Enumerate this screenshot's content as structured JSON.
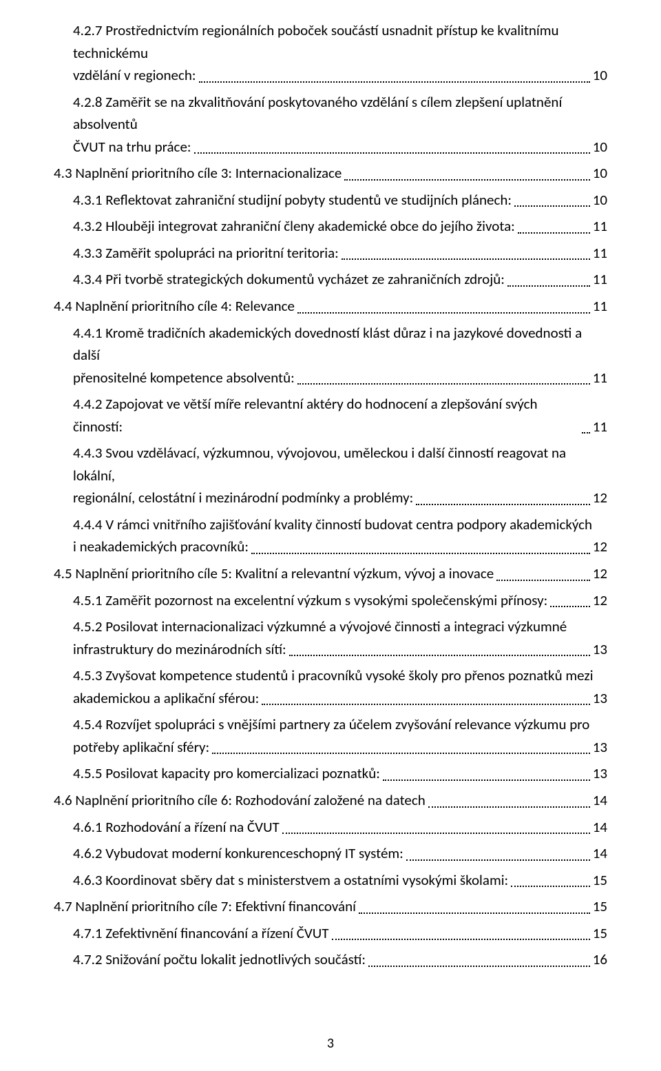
{
  "page_number": "3",
  "toc": [
    {
      "level": 2,
      "multiline": true,
      "pre": "4.2.7 Prostřednictvím regionálních poboček součástí usnadnit přístup ke kvalitnímu technickému",
      "last": "vzdělání v regionech:",
      "page": "10"
    },
    {
      "level": 2,
      "multiline": true,
      "pre": "4.2.8 Zaměřit se na zkvalitňování poskytovaného vzdělání  s cílem zlepšení uplatnění absolventů",
      "last": "ČVUT na trhu práce:",
      "page": "10"
    },
    {
      "level": 1,
      "multiline": false,
      "text": "4.3 Naplnění prioritního cíle 3: Internacionalizace",
      "page": "10"
    },
    {
      "level": 2,
      "multiline": false,
      "text": "4.3.1 Reflektovat zahraniční studijní pobyty studentů ve studijních plánech:",
      "page": "10"
    },
    {
      "level": 2,
      "multiline": false,
      "text": "4.3.2 Hlouběji integrovat zahraniční členy akademické obce do jejího života:",
      "page": "11"
    },
    {
      "level": 2,
      "multiline": false,
      "text": "4.3.3 Zaměřit spolupráci na prioritní teritoria:",
      "page": "11"
    },
    {
      "level": 2,
      "multiline": false,
      "text": "4.3.4 Při tvorbě strategických dokumentů vycházet ze zahraničních zdrojů:",
      "page": "11"
    },
    {
      "level": 1,
      "multiline": false,
      "text": "4.4 Naplnění prioritního cíle 4: Relevance",
      "page": "11"
    },
    {
      "level": 2,
      "multiline": true,
      "pre": "4.4.1 Kromě tradičních akademických dovedností klást důraz i na jazykové dovednosti a další",
      "last": "přenositelné kompetence absolventů:",
      "page": "11"
    },
    {
      "level": 2,
      "multiline": false,
      "text": "4.4.2 Zapojovat ve větší míře relevantní aktéry do hodnocení a zlepšování svých činností:",
      "page": "11"
    },
    {
      "level": 2,
      "multiline": true,
      "pre": "4.4.3 Svou vzdělávací, výzkumnou, vývojovou, uměleckou i další činností reagovat na lokální,",
      "last": "regionální, celostátní i mezinárodní podmínky a problémy:",
      "page": "12"
    },
    {
      "level": 2,
      "multiline": true,
      "pre": "4.4.4 V rámci vnitřního zajišťování kvality činností budovat centra podpory akademických",
      "last": "i neakademických pracovníků:",
      "page": "12"
    },
    {
      "level": 1,
      "multiline": false,
      "text": "4.5 Naplnění prioritního cíle 5: Kvalitní a relevantní výzkum, vývoj a inovace",
      "page": "12"
    },
    {
      "level": 2,
      "multiline": false,
      "text": "4.5.1 Zaměřit pozornost na excelentní výzkum s vysokými společenskými přínosy:",
      "page": "12"
    },
    {
      "level": 2,
      "multiline": true,
      "pre": "4.5.2 Posilovat internacionalizaci výzkumné a vývojové činnosti a integraci výzkumné",
      "last": "infrastruktury do mezinárodních sítí:",
      "page": "13"
    },
    {
      "level": 2,
      "multiline": true,
      "pre": "4.5.3 Zvyšovat kompetence studentů i pracovníků vysoké školy pro přenos poznatků mezi",
      "last": "akademickou a aplikační sférou:",
      "page": "13"
    },
    {
      "level": 2,
      "multiline": true,
      "pre": "4.5.4 Rozvíjet spolupráci s vnějšími partnery za účelem zvyšování relevance výzkumu pro",
      "last": "potřeby aplikační sféry:",
      "page": "13"
    },
    {
      "level": 2,
      "multiline": false,
      "text": "4.5.5 Posilovat kapacity pro komercializaci poznatků:",
      "page": "13"
    },
    {
      "level": 1,
      "multiline": false,
      "text": "4.6 Naplnění prioritního cíle 6: Rozhodování založené na datech",
      "page": "14"
    },
    {
      "level": 2,
      "multiline": false,
      "text": "4.6.1 Rozhodování a řízení na ČVUT",
      "page": "14"
    },
    {
      "level": 2,
      "multiline": false,
      "text": "4.6.2 Vybudovat moderní konkurenceschopný IT systém:",
      "page": "14"
    },
    {
      "level": 2,
      "multiline": false,
      "text": "4.6.3 Koordinovat sběry dat s ministerstvem a ostatními vysokými školami:",
      "page": "15"
    },
    {
      "level": 1,
      "multiline": false,
      "text": "4.7 Naplnění prioritního cíle 7: Efektivní financování",
      "page": "15"
    },
    {
      "level": 2,
      "multiline": false,
      "text": "4.7.1 Zefektivnění financování a řízení ČVUT",
      "page": "15"
    },
    {
      "level": 2,
      "multiline": false,
      "text": "4.7.2 Snižování počtu lokalit jednotlivých součástí:",
      "page": "16"
    }
  ]
}
